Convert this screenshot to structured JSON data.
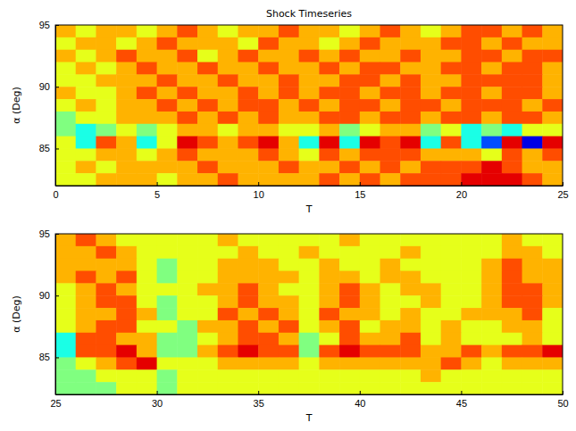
{
  "chart_data": [
    {
      "type": "heatmap",
      "title": "Shock Timeseries",
      "x_label": "T",
      "y_label": "α (Deg)",
      "xlim": [
        0,
        25
      ],
      "xticks": [
        0,
        5,
        10,
        15,
        20,
        25
      ],
      "ylim": [
        82,
        95
      ],
      "yticks": [
        85,
        90,
        95
      ],
      "zlim": [
        0,
        10
      ],
      "x": [
        0,
        1,
        2,
        3,
        4,
        5,
        6,
        7,
        8,
        9,
        10,
        11,
        12,
        13,
        14,
        15,
        16,
        17,
        18,
        19,
        20,
        21,
        22,
        23,
        24,
        25
      ],
      "y": [
        95,
        94,
        93,
        92,
        91,
        90,
        89,
        88,
        87,
        86,
        85,
        84,
        83,
        82
      ],
      "values": [
        [
          7,
          6,
          7,
          7,
          6,
          7,
          8,
          7,
          6,
          7,
          7,
          8,
          7,
          7,
          6,
          7,
          8,
          7,
          6,
          7,
          8,
          8,
          7,
          8,
          7
        ],
        [
          6,
          7,
          7,
          6,
          7,
          8,
          7,
          7,
          7,
          6,
          8,
          7,
          7,
          6,
          7,
          8,
          7,
          7,
          7,
          8,
          8,
          7,
          8,
          7,
          7
        ],
        [
          7,
          6,
          7,
          8,
          7,
          7,
          8,
          6,
          7,
          8,
          7,
          7,
          8,
          7,
          8,
          7,
          7,
          8,
          7,
          7,
          8,
          8,
          7,
          8,
          8
        ],
        [
          6,
          7,
          6,
          7,
          8,
          7,
          7,
          8,
          7,
          7,
          8,
          7,
          7,
          8,
          7,
          8,
          8,
          7,
          7,
          8,
          8,
          7,
          8,
          8,
          7
        ],
        [
          6,
          6,
          7,
          7,
          7,
          8,
          7,
          7,
          8,
          7,
          7,
          8,
          7,
          7,
          8,
          8,
          7,
          8,
          7,
          7,
          8,
          8,
          8,
          8,
          7
        ],
        [
          7,
          6,
          6,
          7,
          8,
          7,
          8,
          7,
          7,
          8,
          7,
          8,
          7,
          8,
          8,
          7,
          8,
          8,
          7,
          8,
          8,
          7,
          8,
          8,
          7
        ],
        [
          6,
          7,
          6,
          7,
          7,
          8,
          7,
          8,
          7,
          8,
          8,
          7,
          8,
          7,
          8,
          8,
          7,
          8,
          8,
          7,
          8,
          8,
          8,
          7,
          8
        ],
        [
          5,
          6,
          6,
          7,
          7,
          7,
          8,
          7,
          8,
          7,
          8,
          7,
          7,
          8,
          8,
          7,
          8,
          8,
          7,
          8,
          8,
          7,
          8,
          8,
          7
        ],
        [
          5,
          4,
          5,
          6,
          5,
          6,
          7,
          7,
          6,
          7,
          7,
          6,
          6,
          7,
          5,
          6,
          7,
          7,
          5,
          6,
          4,
          5,
          4,
          6,
          6
        ],
        [
          6,
          4,
          8,
          7,
          4,
          6,
          9,
          8,
          7,
          8,
          9,
          7,
          4,
          9,
          4,
          9,
          8,
          9,
          4,
          8,
          4,
          2,
          9,
          1,
          9
        ],
        [
          6,
          6,
          7,
          7,
          6,
          7,
          8,
          7,
          7,
          7,
          8,
          7,
          6,
          8,
          7,
          8,
          8,
          8,
          7,
          7,
          7,
          6,
          8,
          7,
          8
        ],
        [
          6,
          7,
          6,
          7,
          7,
          7,
          7,
          8,
          7,
          7,
          7,
          8,
          7,
          7,
          8,
          7,
          8,
          7,
          8,
          8,
          8,
          9,
          8,
          7,
          7
        ],
        [
          6,
          6,
          7,
          7,
          7,
          6,
          7,
          7,
          8,
          7,
          7,
          7,
          7,
          8,
          7,
          8,
          7,
          8,
          8,
          8,
          9,
          9,
          9,
          8,
          7
        ]
      ]
    },
    {
      "type": "heatmap",
      "x_label": "T",
      "y_label": "α (Deg)",
      "xlim": [
        25,
        50
      ],
      "xticks": [
        25,
        30,
        35,
        40,
        45,
        50
      ],
      "ylim": [
        82,
        95
      ],
      "yticks": [
        85,
        90,
        95
      ],
      "zlim": [
        0,
        10
      ],
      "x": [
        25,
        26,
        27,
        28,
        29,
        30,
        31,
        32,
        33,
        34,
        35,
        36,
        37,
        38,
        39,
        40,
        41,
        42,
        43,
        44,
        45,
        46,
        47,
        48,
        49,
        50
      ],
      "y": [
        95,
        94,
        93,
        92,
        91,
        90,
        89,
        88,
        87,
        86,
        85,
        84,
        83,
        82
      ],
      "values": [
        [
          7,
          8,
          7,
          6,
          6,
          6,
          6,
          6,
          7,
          6,
          6,
          6,
          6,
          6,
          7,
          6,
          6,
          6,
          6,
          6,
          6,
          6,
          7,
          6,
          6
        ],
        [
          7,
          7,
          8,
          7,
          6,
          6,
          6,
          6,
          6,
          7,
          6,
          6,
          7,
          6,
          6,
          6,
          6,
          7,
          6,
          6,
          6,
          6,
          7,
          7,
          6
        ],
        [
          7,
          7,
          7,
          7,
          6,
          5,
          6,
          6,
          7,
          7,
          7,
          6,
          6,
          7,
          6,
          6,
          7,
          6,
          6,
          6,
          6,
          7,
          8,
          7,
          7
        ],
        [
          7,
          8,
          7,
          8,
          6,
          5,
          6,
          6,
          7,
          7,
          7,
          7,
          6,
          7,
          7,
          6,
          7,
          7,
          6,
          6,
          6,
          7,
          8,
          7,
          7
        ],
        [
          6,
          7,
          8,
          7,
          6,
          6,
          6,
          7,
          7,
          8,
          7,
          6,
          6,
          7,
          8,
          7,
          6,
          7,
          7,
          6,
          6,
          7,
          8,
          8,
          7
        ],
        [
          6,
          7,
          8,
          8,
          6,
          5,
          6,
          6,
          7,
          8,
          7,
          7,
          6,
          7,
          8,
          7,
          6,
          6,
          7,
          6,
          6,
          7,
          8,
          8,
          7
        ],
        [
          6,
          7,
          7,
          8,
          7,
          5,
          6,
          6,
          8,
          7,
          8,
          7,
          6,
          8,
          7,
          7,
          6,
          7,
          6,
          6,
          7,
          7,
          7,
          8,
          6
        ],
        [
          6,
          7,
          8,
          8,
          6,
          6,
          5,
          7,
          7,
          8,
          7,
          8,
          6,
          7,
          8,
          6,
          7,
          7,
          6,
          7,
          6,
          6,
          7,
          7,
          6
        ],
        [
          4,
          8,
          8,
          7,
          7,
          5,
          5,
          6,
          7,
          8,
          8,
          7,
          5,
          6,
          8,
          7,
          7,
          8,
          6,
          7,
          6,
          6,
          6,
          7,
          6
        ],
        [
          4,
          8,
          8,
          9,
          7,
          5,
          5,
          7,
          8,
          9,
          8,
          8,
          5,
          8,
          9,
          8,
          8,
          8,
          7,
          7,
          8,
          7,
          8,
          8,
          9
        ],
        [
          5,
          6,
          7,
          8,
          9,
          6,
          6,
          6,
          7,
          7,
          7,
          7,
          6,
          7,
          7,
          7,
          7,
          7,
          7,
          8,
          7,
          6,
          7,
          7,
          7
        ],
        [
          5,
          5,
          6,
          6,
          6,
          5,
          6,
          6,
          6,
          6,
          6,
          6,
          6,
          6,
          6,
          6,
          6,
          6,
          7,
          6,
          6,
          6,
          6,
          6,
          6
        ],
        [
          5,
          5,
          5,
          6,
          6,
          5,
          6,
          6,
          6,
          6,
          6,
          6,
          6,
          6,
          6,
          6,
          6,
          6,
          6,
          6,
          6,
          6,
          6,
          6,
          6
        ]
      ]
    }
  ]
}
